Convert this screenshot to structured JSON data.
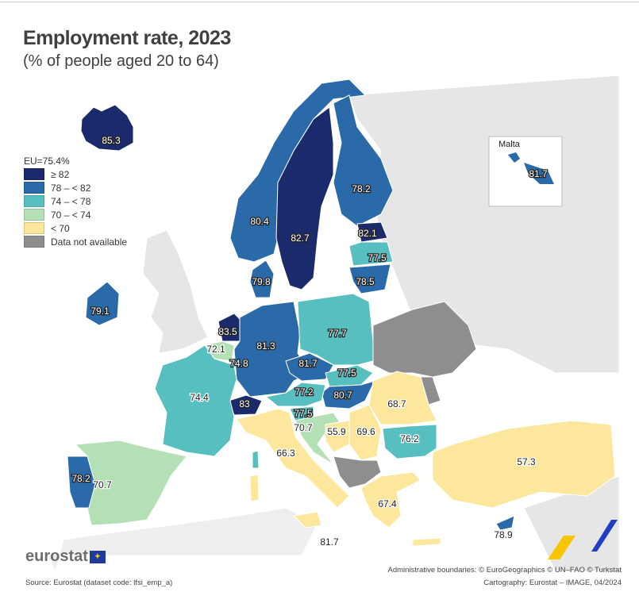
{
  "title": "Employment rate, 2023",
  "subtitle": "(% of people aged 20 to 64)",
  "legend": {
    "eu_average": "EU=75.4%",
    "classes": [
      {
        "label": "≥ 82",
        "color": "#1b2a6b"
      },
      {
        "label": "78 – < 82",
        "color": "#2b6aa8"
      },
      {
        "label": "74 – < 78",
        "color": "#58bfc0"
      },
      {
        "label": "70 – < 74",
        "color": "#b3e0b5"
      },
      {
        "label": "< 70",
        "color": "#fde79c"
      },
      {
        "label": "Data not available",
        "color": "#8e8e8e"
      }
    ]
  },
  "countries": {
    "iceland": "85.3",
    "norway": "80.4",
    "sweden": "82.7",
    "finland": "78.2",
    "estonia": "82.1",
    "latvia": "77.5",
    "lithuania": "78.5",
    "denmark": "79.8",
    "ireland": "79.1",
    "netherlands": "83.5",
    "belgium": "72.1",
    "luxembourg": "74.8",
    "germany": "81.3",
    "poland": "77.7",
    "czechia": "81.7",
    "slovakia": "77.5",
    "hungary": "80.7",
    "austria": "77.2",
    "switzerland": "83",
    "france": "74.4",
    "slovenia": "77.5",
    "croatia": "70.7",
    "bosnia": "55.9",
    "serbia": "69.6",
    "romania": "68.7",
    "bulgaria": "76.2",
    "italy": "66.3",
    "spain": "70.7",
    "portugal": "78.2",
    "greece": "67.4",
    "turkey": "57.3",
    "cyprus": "78.9",
    "malta": "81.7"
  },
  "inset": {
    "title": "Malta",
    "value": "81.7"
  },
  "logo": "eurostat",
  "source": "Source: Eurostat (dataset code: lfsi_emp_a)",
  "boundaries": "Administrative boundaries: © EuroGeographics © UN–FAO © Turkstat",
  "cartography": "Cartography: Eurostat – IMAGE, 04/2024"
}
